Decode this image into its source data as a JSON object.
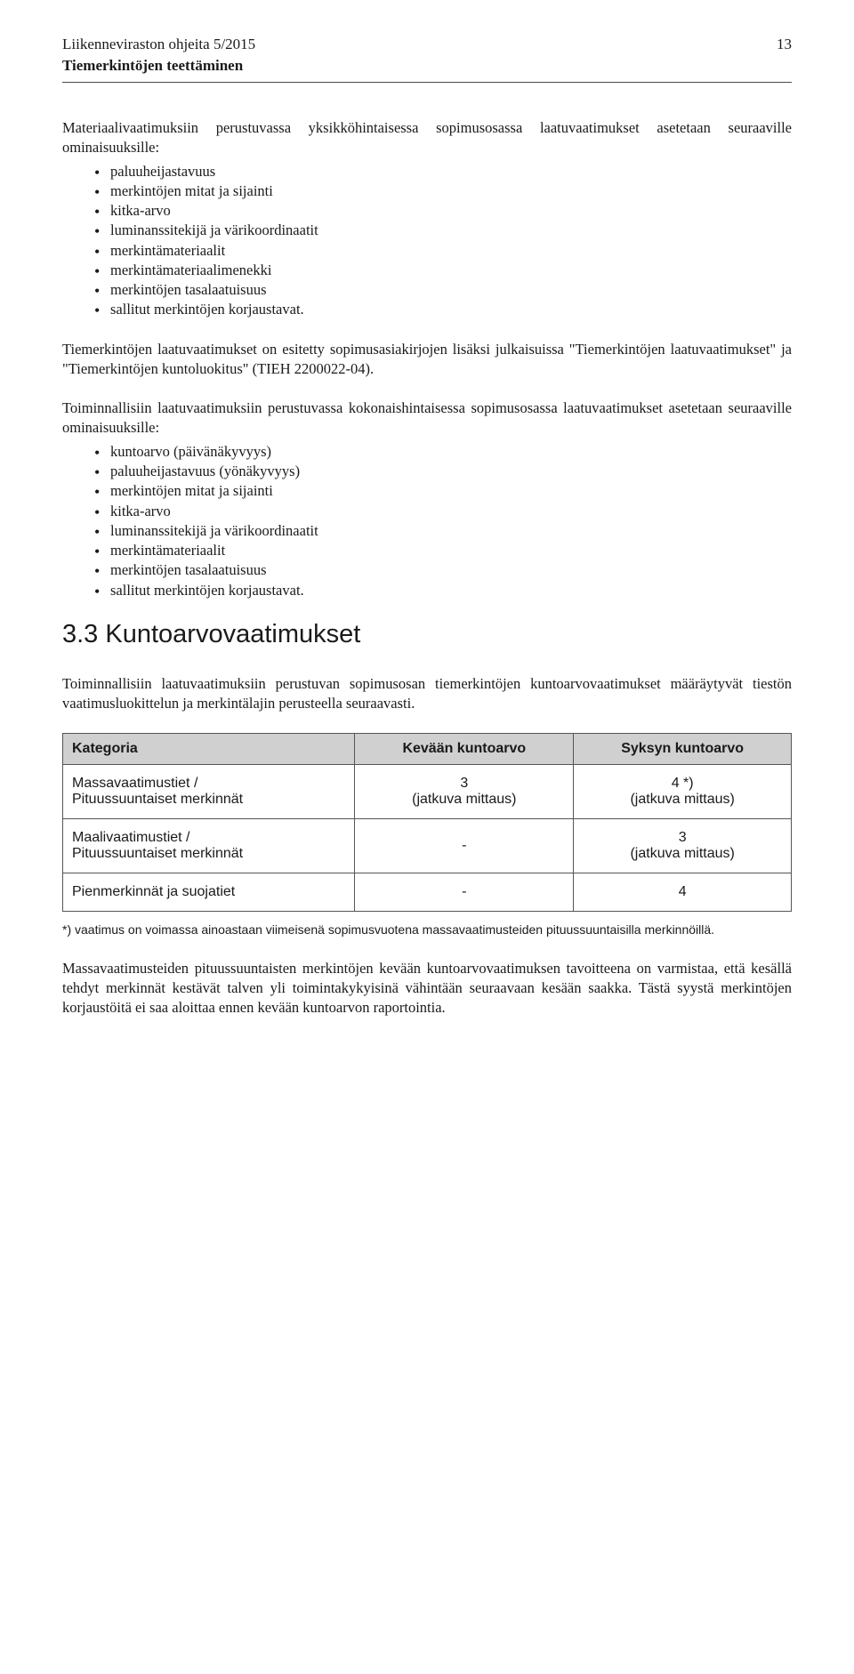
{
  "header": {
    "title": "Liikenneviraston ohjeita 5/2015",
    "pagenum": "13",
    "subtitle": "Tiemerkintöjen teettäminen"
  },
  "para1": "Materiaalivaatimuksiin perustuvassa yksikköhintaisessa sopimusosassa laatuvaatimukset asetetaan seuraaville ominaisuuksille:",
  "list1": {
    "i0": "paluuheijastavuus",
    "i1": "merkintöjen mitat ja sijainti",
    "i2": "kitka-arvo",
    "i3": "luminanssitekijä ja värikoordinaatit",
    "i4": "merkintämateriaalit",
    "i5": "merkintämateriaalimenekki",
    "i6": "merkintöjen tasalaatuisuus",
    "i7": "sallitut merkintöjen korjaustavat."
  },
  "para2": "Tiemerkintöjen laatuvaatimukset on esitetty sopimusasiakirjojen lisäksi julkaisuissa \"Tiemerkintöjen laatuvaatimukset\" ja \"Tiemerkintöjen kuntoluokitus\" (TIEH 2200022-04).",
  "para3": "Toiminnallisiin laatuvaatimuksiin perustuvassa kokonaishintaisessa sopimusosassa laatuvaatimukset asetetaan seuraaville ominaisuuksille:",
  "list2": {
    "i0": "kuntoarvo (päivänäkyvyys)",
    "i1": "paluuheijastavuus (yönäkyvyys)",
    "i2": "merkintöjen mitat ja sijainti",
    "i3": "kitka-arvo",
    "i4": "luminanssitekijä ja värikoordinaatit",
    "i5": "merkintämateriaalit",
    "i6": "merkintöjen tasalaatuisuus",
    "i7": "sallitut merkintöjen korjaustavat."
  },
  "section": {
    "number": "3.3",
    "title": "Kuntoarvovaatimukset"
  },
  "para4": "Toiminnallisiin laatuvaatimuksiin perustuvan sopimusosan tiemerkintöjen kuntoarvovaatimukset määräytyvät tiestön vaatimusluokittelun ja merkintälajin perusteella seuraavasti.",
  "table": {
    "columns": {
      "c0": "Kategoria",
      "c1": "Kevään kuntoarvo",
      "c2": "Syksyn kuntoarvo"
    },
    "rows": {
      "r0": {
        "cat_l1": "Massavaatimustiet /",
        "cat_l2": "Pituussuuntaiset merkinnät",
        "kev_l1": "3",
        "kev_l2": "(jatkuva mittaus)",
        "syk_l1": "4 *)",
        "syk_l2": "(jatkuva mittaus)"
      },
      "r1": {
        "cat_l1": "Maalivaatimustiet /",
        "cat_l2": "Pituussuuntaiset merkinnät",
        "kev_l1": "-",
        "kev_l2": "",
        "syk_l1": "3",
        "syk_l2": "(jatkuva mittaus)"
      },
      "r2": {
        "cat_l1": "Pienmerkinnät ja suojatiet",
        "cat_l2": "",
        "kev_l1": "-",
        "kev_l2": "",
        "syk_l1": "4",
        "syk_l2": ""
      }
    }
  },
  "tablenote": "*) vaatimus on voimassa ainoastaan viimeisenä sopimusvuotena massavaatimusteiden pituussuuntaisilla merkinnöillä.",
  "para5": "Massavaatimusteiden pituussuuntaisten merkintöjen kevään kuntoarvovaatimuksen tavoitteena on varmistaa, että kesällä tehdyt merkinnät kestävät talven yli toimintakykyisinä vähintään seuraavaan kesään saakka. Tästä syystä merkintöjen korjaustöitä ei saa aloittaa ennen kevään kuntoarvon raportointia."
}
